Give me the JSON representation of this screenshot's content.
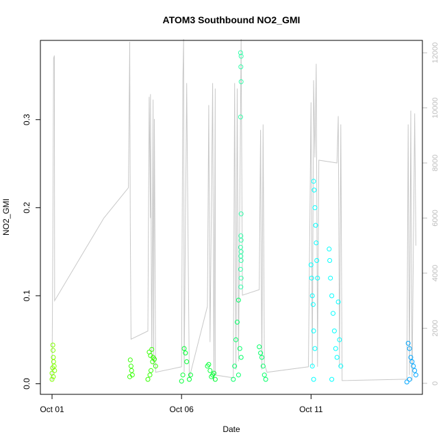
{
  "chart_data": {
    "type": "scatter",
    "title": "ATOM3 Southbound NO2_GMI",
    "xlabel": "Date",
    "ylabel": "NO2_GMI",
    "x_ticks": [
      {
        "day": 1,
        "label": "Oct 01"
      },
      {
        "day": 6,
        "label": "Oct 06"
      },
      {
        "day": 11,
        "label": "Oct 11"
      }
    ],
    "y_ticks": [
      0.0,
      0.1,
      0.2,
      0.3
    ],
    "y_tick_labels": [
      "0.0",
      "0.1",
      "0.2",
      "0.3"
    ],
    "ylim": [
      -0.012,
      0.39
    ],
    "xlim": [
      0.55,
      15.3
    ],
    "y2_ticks": [
      0,
      2000,
      4000,
      6000,
      8000,
      10000,
      12000
    ],
    "y2_tick_labels": [
      "0",
      "2000",
      "4000",
      "6000",
      "8000",
      "10000",
      "12000"
    ],
    "y2lim": [
      -400,
      12450
    ],
    "colors": {
      "altitude_line": "#c8c8c8",
      "frame": "#000000",
      "secondary_axis": "#bdbdbd"
    },
    "altitude_trace": [
      [
        1.0,
        100
      ],
      [
        1.03,
        5200
      ],
      [
        1.06,
        11800
      ],
      [
        1.09,
        11900
      ],
      [
        1.1,
        3600
      ],
      [
        1.1,
        3000
      ],
      [
        3.0,
        6000
      ],
      [
        3.95,
        7100
      ],
      [
        4.0,
        12400
      ],
      [
        4.02,
        5800
      ],
      [
        4.05,
        1600
      ],
      [
        4.7,
        1900
      ],
      [
        4.75,
        10400
      ],
      [
        4.8,
        6000
      ],
      [
        4.8,
        10500
      ],
      [
        4.85,
        900
      ],
      [
        4.9,
        10300
      ],
      [
        4.92,
        600
      ],
      [
        4.95,
        9600
      ],
      [
        5.0,
        400
      ],
      [
        6.0,
        600
      ],
      [
        6.05,
        11000
      ],
      [
        6.08,
        12500
      ],
      [
        6.1,
        400
      ],
      [
        6.2,
        10900
      ],
      [
        6.3,
        200
      ],
      [
        7.0,
        2800
      ],
      [
        7.05,
        10100
      ],
      [
        7.1,
        1500
      ],
      [
        7.2,
        10900
      ],
      [
        7.25,
        100
      ],
      [
        7.3,
        10700
      ],
      [
        7.3,
        300
      ],
      [
        8.0,
        200
      ],
      [
        8.05,
        10900
      ],
      [
        8.1,
        500
      ],
      [
        8.15,
        10700
      ],
      [
        8.2,
        800
      ],
      [
        8.3,
        12500
      ],
      [
        8.35,
        3200
      ],
      [
        9.0,
        3400
      ],
      [
        9.05,
        9200
      ],
      [
        9.1,
        500
      ],
      [
        9.15,
        9400
      ],
      [
        9.2,
        700
      ],
      [
        9.3,
        400
      ],
      [
        10.9,
        600
      ],
      [
        11.0,
        10200
      ],
      [
        11.05,
        600
      ],
      [
        11.1,
        11000
      ],
      [
        11.15,
        8200
      ],
      [
        11.2,
        11600
      ],
      [
        11.25,
        600
      ],
      [
        11.3,
        8100
      ],
      [
        12.0,
        8000
      ],
      [
        12.05,
        9700
      ],
      [
        12.1,
        600
      ],
      [
        12.15,
        9400
      ],
      [
        12.2,
        100
      ],
      [
        14.7,
        150
      ],
      [
        14.75,
        9400
      ],
      [
        14.8,
        300
      ],
      [
        14.85,
        9900
      ],
      [
        14.9,
        100
      ],
      [
        15.0,
        9800
      ],
      [
        15.05,
        5000
      ]
    ],
    "series": [
      {
        "color": "#80ff00",
        "points": [
          [
            1.0,
            0.005
          ],
          [
            1.0,
            0.012
          ],
          [
            1.02,
            0.018
          ],
          [
            1.03,
            0.044
          ],
          [
            1.04,
            0.038
          ],
          [
            1.05,
            0.03
          ],
          [
            1.06,
            0.025
          ],
          [
            1.08,
            0.02
          ],
          [
            1.1,
            0.015
          ],
          [
            1.05,
            0.008
          ]
        ]
      },
      {
        "color": "#33ff00",
        "points": [
          [
            4.0,
            0.008
          ],
          [
            4.02,
            0.027
          ],
          [
            4.05,
            0.02
          ],
          [
            4.07,
            0.015
          ],
          [
            4.1,
            0.01
          ],
          [
            4.7,
            0.005
          ],
          [
            4.75,
            0.036
          ],
          [
            4.8,
            0.032
          ],
          [
            4.85,
            0.039
          ],
          [
            4.9,
            0.03
          ],
          [
            4.95,
            0.028
          ],
          [
            5.0,
            0.02
          ],
          [
            4.82,
            0.015
          ],
          [
            4.88,
            0.025
          ],
          [
            4.78,
            0.01
          ]
        ]
      },
      {
        "color": "#00ff33",
        "points": [
          [
            6.0,
            0.003
          ],
          [
            6.05,
            0.01
          ],
          [
            6.1,
            0.04
          ],
          [
            6.15,
            0.035
          ],
          [
            6.2,
            0.025
          ],
          [
            6.3,
            0.005
          ],
          [
            6.35,
            0.01
          ],
          [
            7.0,
            0.02
          ],
          [
            7.05,
            0.022
          ],
          [
            7.1,
            0.015
          ],
          [
            7.2,
            0.01
          ],
          [
            7.3,
            0.005
          ],
          [
            7.25,
            0.012
          ],
          [
            7.15,
            0.008
          ]
        ]
      },
      {
        "color": "#00ff66",
        "points": [
          [
            8.0,
            0.005
          ],
          [
            8.05,
            0.02
          ],
          [
            8.1,
            0.05
          ],
          [
            8.15,
            0.07
          ],
          [
            8.2,
            0.095
          ],
          [
            8.25,
            0.04
          ],
          [
            8.3,
            0.03
          ],
          [
            8.2,
            0.01
          ],
          [
            9.0,
            0.042
          ],
          [
            9.05,
            0.035
          ],
          [
            9.1,
            0.03
          ],
          [
            9.15,
            0.02
          ],
          [
            9.2,
            0.01
          ],
          [
            9.25,
            0.005
          ]
        ]
      },
      {
        "color": "#33ffaa",
        "points": [
          [
            8.28,
            0.376
          ],
          [
            8.3,
            0.372
          ],
          [
            8.29,
            0.36
          ],
          [
            8.3,
            0.343
          ],
          [
            8.28,
            0.303
          ],
          [
            8.3,
            0.193
          ],
          [
            8.29,
            0.168
          ],
          [
            8.3,
            0.163
          ],
          [
            8.28,
            0.155
          ],
          [
            8.3,
            0.15
          ],
          [
            8.29,
            0.145
          ],
          [
            8.3,
            0.14
          ],
          [
            8.28,
            0.13
          ],
          [
            8.3,
            0.12
          ],
          [
            8.29,
            0.11
          ]
        ]
      },
      {
        "color": "#00ffff",
        "points": [
          [
            11.0,
            0.135
          ],
          [
            11.02,
            0.12
          ],
          [
            11.05,
            0.1
          ],
          [
            11.08,
            0.09
          ],
          [
            11.1,
            0.23
          ],
          [
            11.12,
            0.22
          ],
          [
            11.15,
            0.2
          ],
          [
            11.18,
            0.18
          ],
          [
            11.2,
            0.16
          ],
          [
            11.22,
            0.14
          ],
          [
            11.25,
            0.12
          ],
          [
            11.1,
            0.06
          ],
          [
            11.15,
            0.04
          ],
          [
            11.05,
            0.02
          ],
          [
            11.1,
            0.005
          ],
          [
            11.7,
            0.153
          ],
          [
            11.72,
            0.14
          ],
          [
            11.75,
            0.12
          ],
          [
            11.8,
            0.1
          ],
          [
            11.85,
            0.08
          ],
          [
            11.9,
            0.06
          ],
          [
            11.95,
            0.04
          ],
          [
            12.0,
            0.03
          ],
          [
            12.05,
            0.093
          ],
          [
            12.1,
            0.05
          ],
          [
            12.15,
            0.02
          ],
          [
            11.8,
            0.005
          ]
        ]
      },
      {
        "color": "#00a6ff",
        "points": [
          [
            14.7,
            0.002
          ],
          [
            14.75,
            0.046
          ],
          [
            14.8,
            0.04
          ],
          [
            14.85,
            0.03
          ],
          [
            14.9,
            0.025
          ],
          [
            14.95,
            0.02
          ],
          [
            15.0,
            0.015
          ],
          [
            15.05,
            0.01
          ],
          [
            14.8,
            0.005
          ]
        ]
      }
    ]
  }
}
